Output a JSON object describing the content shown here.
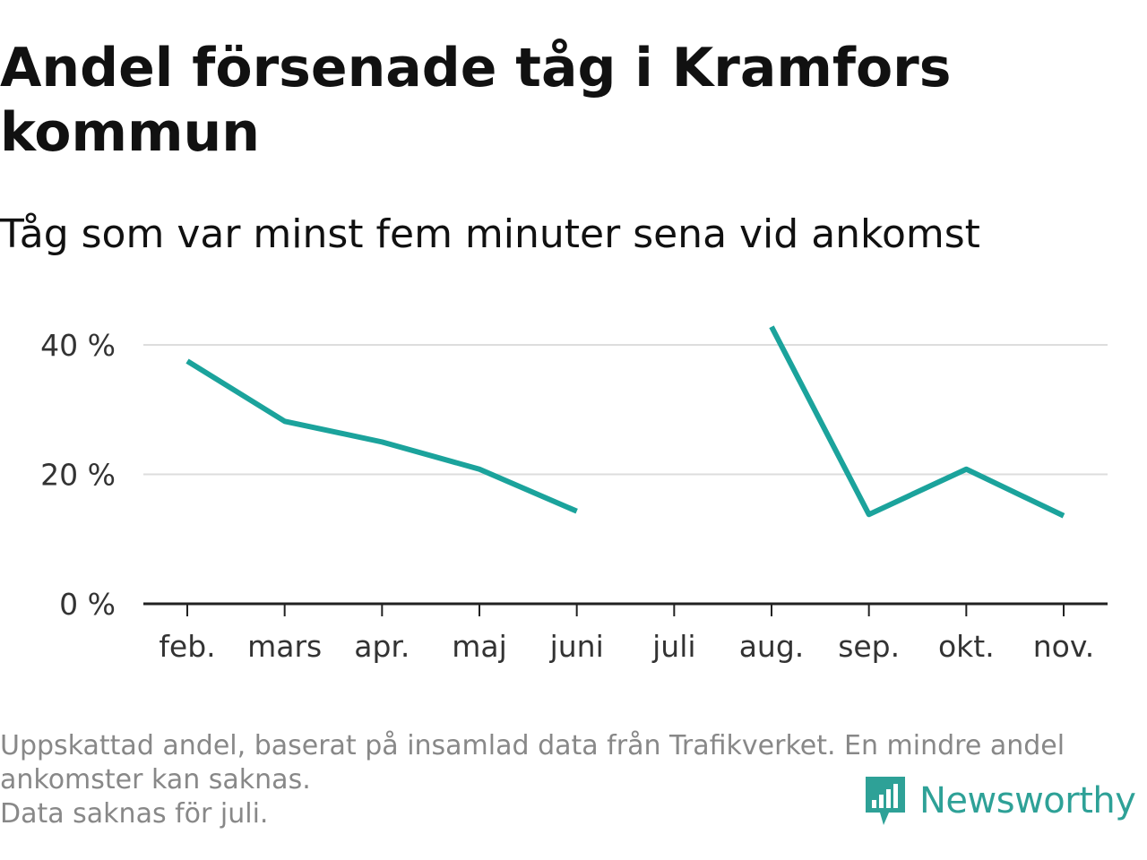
{
  "title": "Andel försenade tåg i Kramfors kommun",
  "subtitle": "Tåg som var minst fem minuter sena vid ankomst",
  "footnote": {
    "line1": "Uppskattad andel, baserat på insamlad data från Trafikverket. En mindre andel",
    "line2": "ankomster kan saknas.",
    "line3": "Data saknas för juli."
  },
  "brand": {
    "name": "Newsworthy",
    "icon": "newsworthy-logo-icon"
  },
  "colors": {
    "line": "#1ba39c",
    "grid": "#dddddd",
    "axis": "#222222",
    "brand": "#2ea197"
  },
  "chart_data": {
    "type": "line",
    "categories": [
      "feb.",
      "mars",
      "apr.",
      "maj",
      "juni",
      "juli",
      "aug.",
      "sep.",
      "okt.",
      "nov."
    ],
    "series": [
      {
        "values": [
          37.5,
          28.2,
          25.0,
          20.8,
          14.3,
          null,
          42.8,
          13.8,
          20.8,
          13.6
        ]
      }
    ],
    "y_ticks": [
      {
        "value": 0,
        "label": "0 %"
      },
      {
        "value": 20,
        "label": "20 %"
      },
      {
        "value": 40,
        "label": "40 %"
      }
    ],
    "ylim": [
      0,
      40
    ],
    "grid": true
  }
}
